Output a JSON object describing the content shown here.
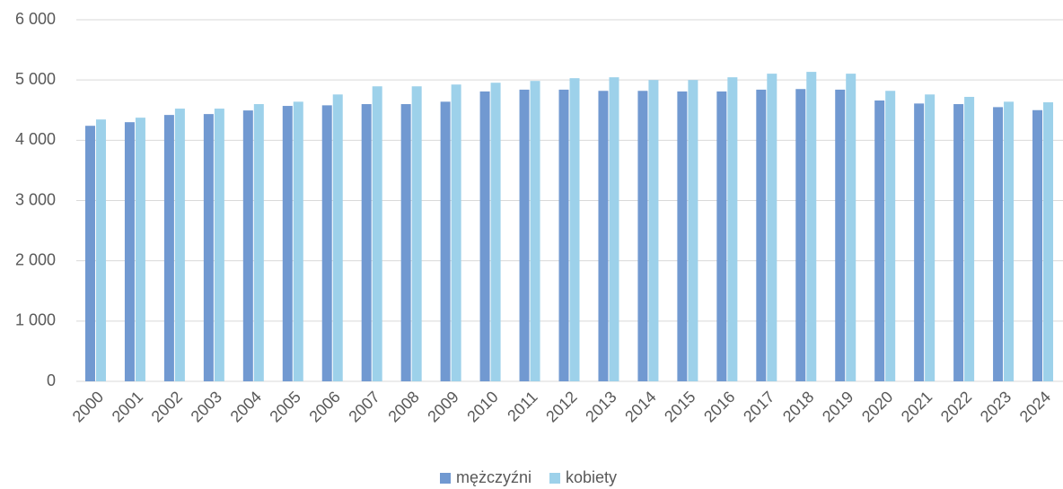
{
  "chart_data": {
    "type": "bar",
    "categories": [
      "2000",
      "2001",
      "2002",
      "2003",
      "2004",
      "2005",
      "2006",
      "2007",
      "2008",
      "2009",
      "2010",
      "2011",
      "2012",
      "2013",
      "2014",
      "2015",
      "2016",
      "2017",
      "2018",
      "2019",
      "2020",
      "2021",
      "2022",
      "2023",
      "2024"
    ],
    "series": [
      {
        "name": "mężczyźni",
        "color": "#7199d1",
        "values": [
          4240,
          4300,
          4420,
          4435,
          4495,
          4570,
          4580,
          4600,
          4600,
          4640,
          4810,
          4840,
          4840,
          4820,
          4820,
          4810,
          4810,
          4840,
          4850,
          4840,
          4660,
          4610,
          4600,
          4550,
          4500
        ]
      },
      {
        "name": "kobiety",
        "color": "#9dd1ea",
        "values": [
          4345,
          4375,
          4525,
          4525,
          4600,
          4640,
          4760,
          4895,
          4895,
          4925,
          4955,
          4985,
          5030,
          5045,
          5000,
          5000,
          5045,
          5105,
          5135,
          5105,
          4820,
          4760,
          4720,
          4640,
          4630
        ]
      }
    ],
    "ylim": [
      0,
      6000
    ],
    "yticks": [
      0,
      {
        "value": 1000,
        "label": "1 000"
      },
      {
        "value": 2000,
        "label": "2 000"
      },
      {
        "value": 3000,
        "label": "3 000"
      },
      {
        "value": 4000,
        "label": "4 000"
      },
      {
        "value": 5000,
        "label": "5 000"
      },
      {
        "value": 6000,
        "label": "6 000"
      }
    ],
    "grid": true,
    "legend": "bottom"
  }
}
